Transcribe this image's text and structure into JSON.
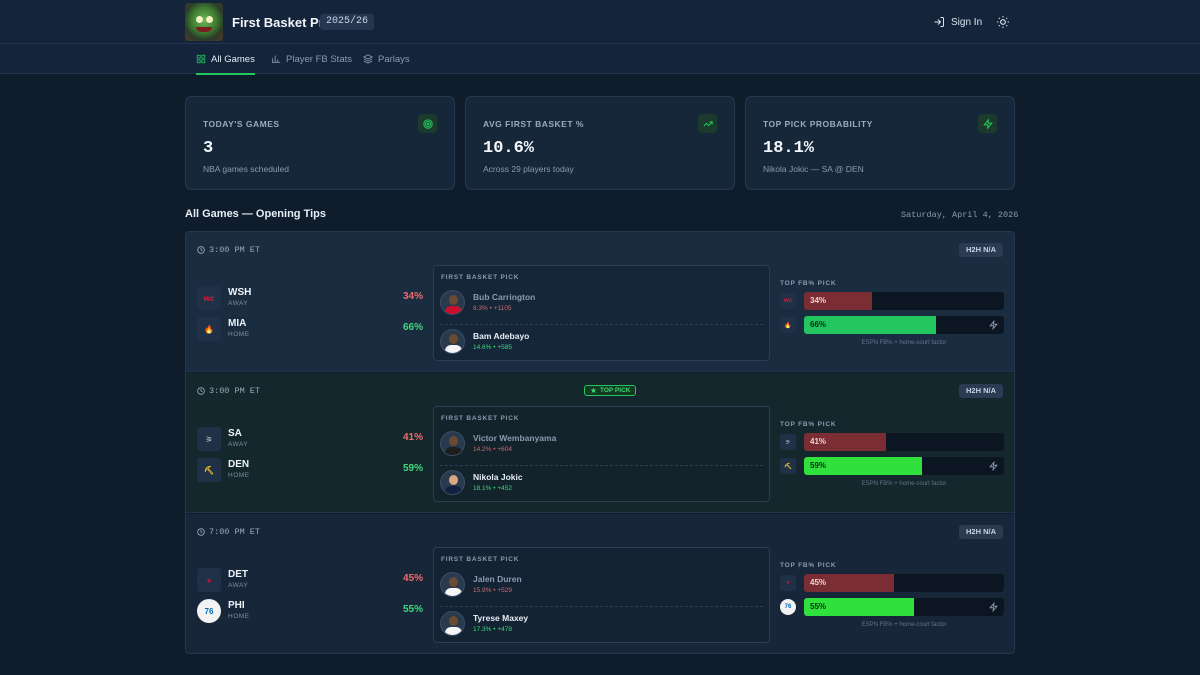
{
  "app": {
    "title": "First Basket Pro",
    "season": "2025/26"
  },
  "header": {
    "signin_label": "Sign In",
    "signin_icon": "sign-in-icon",
    "theme_icon": "sun-icon"
  },
  "nav": {
    "tabs": [
      {
        "label": "All Games",
        "icon": "grid-icon",
        "active": true
      },
      {
        "label": "Player FB Stats",
        "icon": "bar-chart-icon",
        "active": false
      },
      {
        "label": "Parlays",
        "icon": "layers-icon",
        "active": false
      }
    ]
  },
  "stats": [
    {
      "label": "TODAY'S GAMES",
      "value": "3",
      "sub": "NBA games scheduled",
      "icon": "target-icon"
    },
    {
      "label": "AVG FIRST BASKET %",
      "value": "10.6%",
      "sub": "Across 29 players today",
      "icon": "trending-up-icon"
    },
    {
      "label": "TOP PICK PROBABILITY",
      "value": "18.1%",
      "sub": "Nikola Jokic — SA @ DEN",
      "icon": "zap-icon"
    }
  ],
  "section": {
    "title": "All Games — Opening Tips",
    "date": "Saturday, April 4, 2026"
  },
  "labels": {
    "first_basket_pick": "FIRST BASKET PICK",
    "top_fb_pick": "TOP FB% PICK",
    "footnote": "ESPN FB% + home-court factor",
    "h2h": "H2H N/A",
    "top_pick": "TOP PICK"
  },
  "colors": {
    "accent": "#22c55e",
    "away": "#f06b6b",
    "away_bar": "#7a2e34",
    "home": "#3fd97a"
  },
  "games": [
    {
      "time": "3:00 PM ET",
      "top_pick": false,
      "away": {
        "abbr": "WSH",
        "side": "AWAY",
        "pct": "34%",
        "share": 0.34
      },
      "home": {
        "abbr": "MIA",
        "side": "HOME",
        "pct": "66%",
        "share": 0.66
      },
      "picks": [
        {
          "name": "Bub Carrington",
          "odds": "8.3% • +1105"
        },
        {
          "name": "Bam Adebayo",
          "odds": "14.6% • +585"
        }
      ]
    },
    {
      "time": "3:00 PM ET",
      "top_pick": true,
      "away": {
        "abbr": "SA",
        "side": "AWAY",
        "pct": "41%",
        "share": 0.41
      },
      "home": {
        "abbr": "DEN",
        "side": "HOME",
        "pct": "59%",
        "share": 0.59
      },
      "picks": [
        {
          "name": "Victor Wembanyama",
          "odds": "14.2% • +604"
        },
        {
          "name": "Nikola Jokic",
          "odds": "18.1% • +452"
        }
      ]
    },
    {
      "time": "7:00 PM ET",
      "top_pick": false,
      "away": {
        "abbr": "DET",
        "side": "AWAY",
        "pct": "45%",
        "share": 0.45
      },
      "home": {
        "abbr": "PHI",
        "side": "HOME",
        "pct": "55%",
        "share": 0.55
      },
      "picks": [
        {
          "name": "Jalen Duren",
          "odds": "15.9% • +529"
        },
        {
          "name": "Tyrese Maxey",
          "odds": "17.3% • +478"
        }
      ]
    }
  ]
}
